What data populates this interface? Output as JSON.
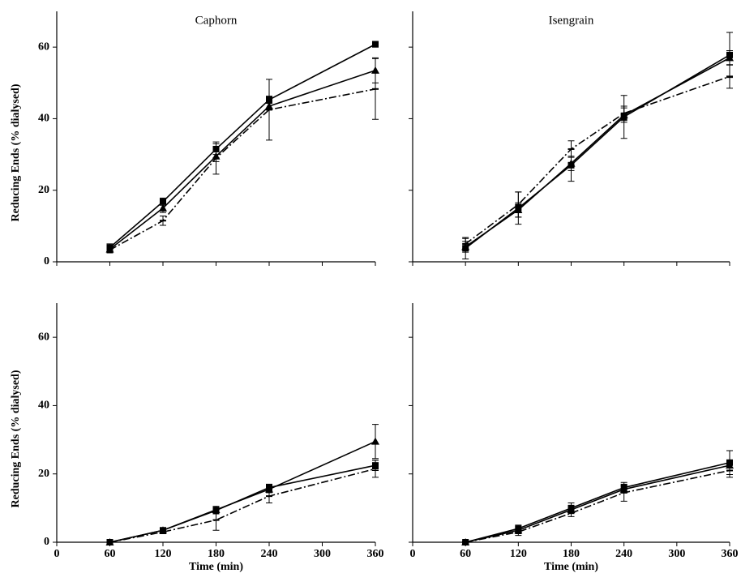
{
  "chart_data": [
    {
      "type": "line",
      "title": "Caphorn",
      "ylabel": "Reducing Ends (% dialysed)",
      "x": [
        60,
        120,
        180,
        240,
        360
      ],
      "xlim": [
        0,
        360
      ],
      "xticks": [
        0,
        60,
        120,
        180,
        240,
        300,
        360
      ],
      "show_xtick_labels": false,
      "ylim": [
        0,
        70
      ],
      "yticks": [
        0,
        20,
        40,
        60
      ],
      "show_ytick_labels": true,
      "series": [
        {
          "color": "#000000",
          "marker": "square",
          "dash": "solid",
          "values": [
            4,
            16.8,
            31.5,
            45.3,
            60.8
          ],
          "errors": [
            1,
            1,
            1.5,
            1,
            0.8
          ]
        },
        {
          "color": "#000000",
          "marker": "triangle",
          "dash": "solid",
          "values": [
            3.5,
            15,
            29.5,
            43.5,
            53.5
          ],
          "errors": [
            0.8,
            1.2,
            1.5,
            1,
            3.5
          ]
        },
        {
          "color": "#000000",
          "marker": "dash",
          "dash": "dashdot",
          "values": [
            3.3,
            11.5,
            29,
            42.5,
            48.3
          ],
          "errors": [
            0.8,
            1.3,
            4.5,
            8.5,
            8.5
          ]
        }
      ]
    },
    {
      "type": "line",
      "title": "Isengrain",
      "x": [
        60,
        120,
        180,
        240,
        360
      ],
      "xlim": [
        0,
        360
      ],
      "xticks": [
        0,
        60,
        120,
        180,
        240,
        300,
        360
      ],
      "show_xtick_labels": false,
      "ylim": [
        0,
        70
      ],
      "yticks": [
        0,
        20,
        40,
        60
      ],
      "show_ytick_labels": false,
      "series": [
        {
          "color": "#000000",
          "marker": "square",
          "dash": "solid",
          "values": [
            3.8,
            15,
            27,
            40.5,
            57.8
          ],
          "errors": [
            3,
            4.5,
            4.5,
            6,
            6.3
          ]
        },
        {
          "color": "#000000",
          "marker": "triangle",
          "dash": "solid",
          "values": [
            4.2,
            14.5,
            27.5,
            41,
            57
          ],
          "errors": [
            1.5,
            2,
            2,
            2,
            2
          ]
        },
        {
          "color": "#000000",
          "marker": "dash",
          "dash": "dashdot",
          "values": [
            5,
            16,
            31.5,
            41.5,
            51.8
          ],
          "errors": [
            1.5,
            3.5,
            2.3,
            2,
            3.3
          ]
        }
      ]
    },
    {
      "type": "line",
      "ylabel": "Reducing Ends (% dialysed)",
      "xlabel": "Time (min)",
      "x": [
        60,
        120,
        180,
        240,
        360
      ],
      "xlim": [
        0,
        360
      ],
      "xticks": [
        0,
        60,
        120,
        180,
        240,
        300,
        360
      ],
      "show_xtick_labels": true,
      "ylim": [
        0,
        70
      ],
      "yticks": [
        0,
        20,
        40,
        60
      ],
      "show_ytick_labels": true,
      "series": [
        {
          "color": "#000000",
          "marker": "square",
          "dash": "solid",
          "values": [
            0,
            3.5,
            9.3,
            16,
            22.5
          ],
          "errors": [
            0.3,
            0.5,
            1,
            1,
            1.5
          ]
        },
        {
          "color": "#000000",
          "marker": "triangle",
          "dash": "solid",
          "values": [
            0,
            3.5,
            9.5,
            15.5,
            29.5
          ],
          "errors": [
            0.3,
            0.5,
            1,
            1,
            5
          ]
        },
        {
          "color": "#000000",
          "marker": "dash",
          "dash": "dashdot",
          "values": [
            0,
            3,
            6.5,
            13.5,
            21.5
          ],
          "errors": [
            0.3,
            0.5,
            3,
            2,
            2.5
          ]
        }
      ]
    },
    {
      "type": "line",
      "xlabel": "Time (min)",
      "x": [
        60,
        120,
        180,
        240,
        360
      ],
      "xlim": [
        0,
        360
      ],
      "xticks": [
        0,
        60,
        120,
        180,
        240,
        300,
        360
      ],
      "show_xtick_labels": true,
      "ylim": [
        0,
        70
      ],
      "yticks": [
        0,
        20,
        40,
        60
      ],
      "show_ytick_labels": false,
      "series": [
        {
          "color": "#000000",
          "marker": "square",
          "dash": "solid",
          "values": [
            0,
            4,
            10,
            16,
            23.3
          ],
          "errors": [
            0.3,
            1,
            1.5,
            1.5,
            3.5
          ]
        },
        {
          "color": "#000000",
          "marker": "triangle",
          "dash": "solid",
          "values": [
            0,
            3.5,
            9.5,
            15.5,
            22.5
          ],
          "errors": [
            0.3,
            1,
            1,
            1,
            1.5
          ]
        },
        {
          "color": "#000000",
          "marker": "dash",
          "dash": "dashdot",
          "values": [
            0,
            3,
            8.5,
            14.5,
            21
          ],
          "errors": [
            0.3,
            1,
            1,
            2.5,
            2
          ]
        }
      ]
    }
  ]
}
